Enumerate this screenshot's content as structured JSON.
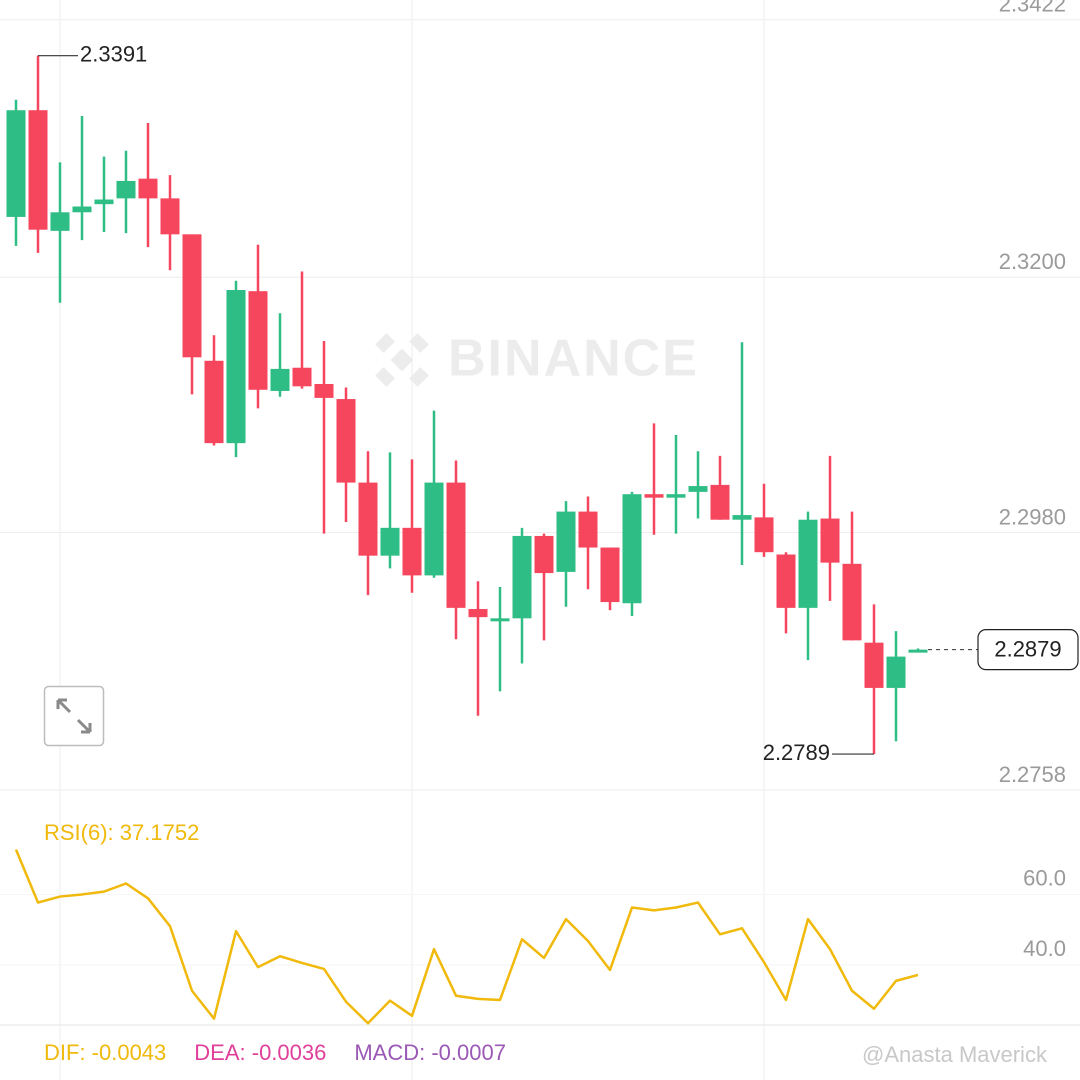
{
  "chart_data": [
    {
      "type": "candlestick",
      "up_color": "#2ebd85",
      "down_color": "#f6465d",
      "ylim": [
        2.2758,
        2.3439
      ],
      "yticks": [
        2.3422,
        {
          "value": 2.32,
          "label": "2.3200"
        },
        {
          "value": 2.298,
          "label": "2.2980"
        },
        2.2758
      ],
      "grid": true,
      "open": [
        2.3252,
        2.3344,
        2.324,
        2.3256,
        2.3263,
        2.3268,
        2.3285,
        2.3268,
        2.3237,
        2.3128,
        2.3057,
        2.3188,
        2.3102,
        2.3122,
        2.3108,
        2.3095,
        2.3023,
        2.296,
        2.2984,
        2.2943,
        2.3023,
        2.2914,
        2.2904,
        2.2906,
        2.2977,
        2.2946,
        2.2998,
        2.2967,
        2.2919,
        2.3013,
        2.301,
        2.3015,
        2.3021,
        2.2991,
        2.2993,
        2.2961,
        2.2915,
        2.2992,
        2.2953,
        2.2885,
        2.2846,
        2.2878
      ],
      "high": [
        2.3353,
        2.3391,
        2.3299,
        2.3339,
        2.3304,
        2.3309,
        2.3333,
        2.3288,
        2.3237,
        2.315,
        2.3197,
        2.3228,
        2.3169,
        2.3205,
        2.3145,
        2.3105,
        2.305,
        2.3049,
        2.3043,
        2.3085,
        2.3042,
        2.2938,
        2.2933,
        2.2984,
        2.2979,
        2.3007,
        2.3011,
        2.2967,
        2.3015,
        2.3074,
        2.3064,
        2.305,
        2.3046,
        2.3144,
        2.3022,
        2.2963,
        2.2998,
        2.3046,
        2.2998,
        2.2918,
        2.2895,
        2.288
      ],
      "low": [
        2.3227,
        2.3221,
        2.3178,
        2.3232,
        2.3239,
        2.3238,
        2.3226,
        2.3206,
        2.3099,
        2.3055,
        2.3045,
        2.3087,
        2.3097,
        2.3104,
        2.2979,
        2.2989,
        2.2926,
        2.2949,
        2.2928,
        2.2941,
        2.2888,
        2.2822,
        2.2843,
        2.2867,
        2.2887,
        2.2916,
        2.2931,
        2.2913,
        2.2908,
        2.2978,
        2.2979,
        2.2992,
        2.2991,
        2.2952,
        2.2959,
        2.2893,
        2.287,
        2.2921,
        2.2887,
        2.2789,
        2.28,
        2.2877
      ],
      "close": [
        2.3344,
        2.3241,
        2.3256,
        2.3261,
        2.3267,
        2.3283,
        2.3268,
        2.3237,
        2.3131,
        2.3057,
        2.3189,
        2.3103,
        2.3121,
        2.3106,
        2.3096,
        2.3023,
        2.296,
        2.2984,
        2.2943,
        2.3023,
        2.2915,
        2.2907,
        2.2906,
        2.2977,
        2.2945,
        2.2998,
        2.2967,
        2.292,
        2.3013,
        2.301,
        2.3013,
        2.302,
        2.2991,
        2.2995,
        2.2963,
        2.2915,
        2.2991,
        2.2954,
        2.2887,
        2.2846,
        2.2873,
        2.2879
      ]
    },
    {
      "type": "line",
      "label": "RSI(6): 37.1752",
      "color": "#f0b90b",
      "ylim": [
        23.0,
        89.6
      ],
      "yticks": [
        {
          "value": 60,
          "label": "60.0"
        },
        {
          "value": 40,
          "label": "40.0"
        }
      ],
      "values": [
        72.7,
        57.7,
        59.4,
        60.0,
        60.8,
        63.1,
        58.9,
        51.0,
        32.7,
        24.8,
        49.6,
        39.4,
        42.5,
        40.6,
        38.9,
        29.6,
        23.5,
        29.9,
        25.6,
        44.5,
        31.3,
        30.4,
        30.1,
        47.3,
        42.0,
        53.0,
        46.8,
        38.6,
        56.3,
        55.5,
        56.3,
        57.7,
        48.7,
        50.4,
        40.8,
        30.1,
        53.0,
        44.5,
        32.7,
        27.6,
        35.5,
        37.2
      ]
    }
  ],
  "macd_labels": [
    {
      "text": "DIF: -0.0043",
      "color": "#f0b90b"
    },
    {
      "text": "DEA: -0.0036",
      "color": "#e0409a"
    },
    {
      "text": "MACD: -0.0007",
      "color": "#9b59b6"
    }
  ],
  "watermark": "BINANCE",
  "credit": "@Anasta Maverick"
}
